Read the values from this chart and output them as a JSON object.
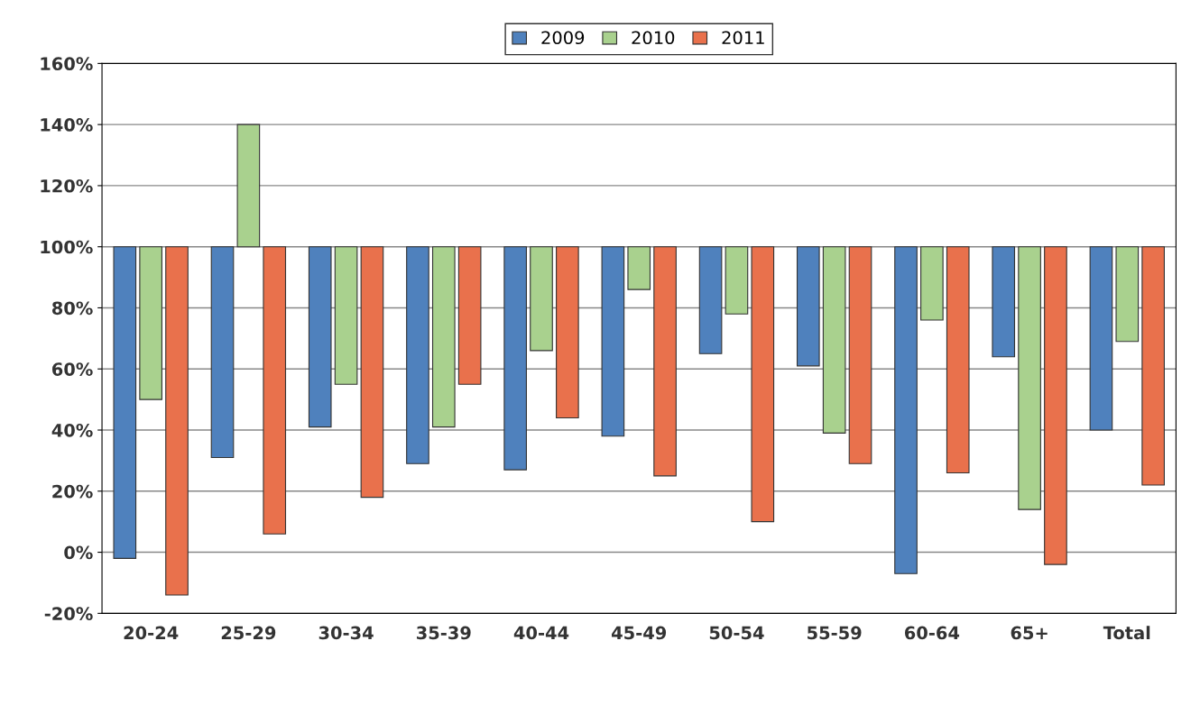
{
  "chart_data": {
    "type": "bar",
    "categories": [
      "20-24",
      "25-29",
      "30-34",
      "35-39",
      "40-44",
      "45-49",
      "50-54",
      "55-59",
      "60-64",
      "65+",
      "Total"
    ],
    "series": [
      {
        "name": "2009",
        "color": "#4f81bd",
        "base": [
          100,
          100,
          100,
          100,
          100,
          100,
          100,
          100,
          100,
          100,
          100
        ],
        "values": [
          -102,
          -69,
          -59,
          -71,
          -73,
          -62,
          -35,
          -39,
          -107,
          -36,
          -60
        ]
      },
      {
        "name": "2010",
        "color": "#a9d18e",
        "base": [
          100,
          100,
          100,
          100,
          100,
          100,
          100,
          100,
          100,
          100,
          100
        ],
        "values": [
          -50,
          40,
          -45,
          -59,
          -34,
          -14,
          -22,
          -61,
          -24,
          -86,
          -31
        ]
      },
      {
        "name": "2011",
        "color": "#e9714c",
        "base": [
          100,
          100,
          100,
          100,
          100,
          100,
          100,
          100,
          100,
          100,
          100
        ],
        "values": [
          -114,
          -94,
          -82,
          -45,
          -56,
          -75,
          -90,
          -71,
          -74,
          -104,
          -78
        ]
      }
    ],
    "ylim": [
      -20,
      160
    ],
    "yticks": [
      {
        "value": -20,
        "label": "-20%"
      },
      {
        "value": 0,
        "label": "0%"
      },
      {
        "value": 20,
        "label": "20%"
      },
      {
        "value": 40,
        "label": "40%"
      },
      {
        "value": 60,
        "label": "60%"
      },
      {
        "value": 80,
        "label": "80%"
      },
      {
        "value": 100,
        "label": "100%"
      },
      {
        "value": 120,
        "label": "120%"
      },
      {
        "value": 140,
        "label": "140%"
      },
      {
        "value": 160,
        "label": "160%"
      }
    ],
    "grid": "y",
    "legend": "top"
  }
}
